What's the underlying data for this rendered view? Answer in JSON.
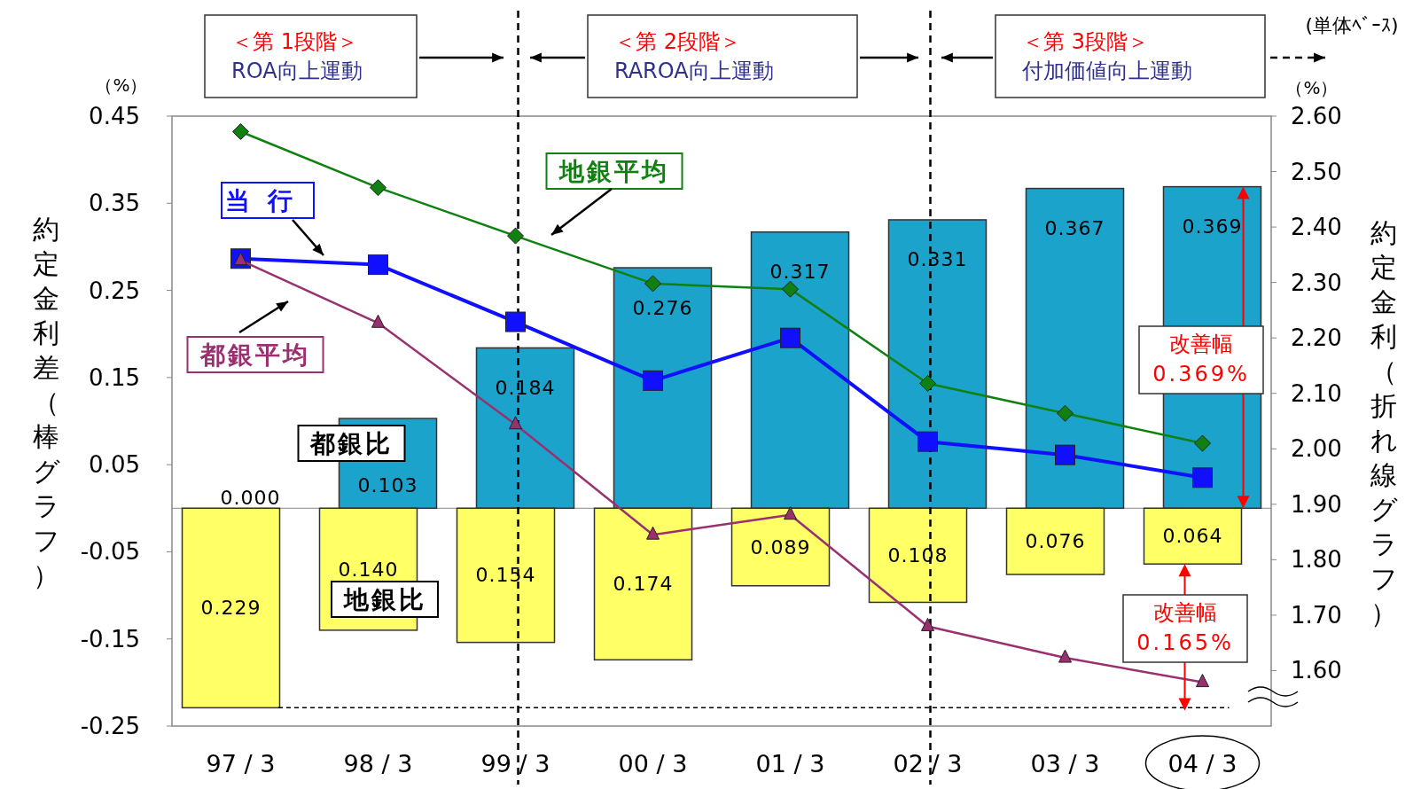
{
  "chart_data": {
    "type": "bar",
    "ylabel": "約定金利差（棒グラフ）",
    "y2label": "約定金利（折れ線グラフ）",
    "categories": [
      "97 / 3",
      "98 / 3",
      "99 / 3",
      "00 / 3",
      "01 / 3",
      "02 / 3",
      "03 / 3",
      "04 / 3"
    ],
    "ylim": [
      -0.25,
      0.45
    ],
    "yticks": [
      -0.25,
      -0.15,
      -0.05,
      0.05,
      0.15,
      0.25,
      0.35,
      0.45
    ],
    "y2lim": [
      1.5,
      2.6
    ],
    "y2ticks": [
      {
        "value": 1.6,
        "label": "1.60"
      },
      {
        "value": 1.7,
        "label": "1.70"
      },
      {
        "value": 1.8,
        "label": "1.80"
      },
      {
        "value": 1.9,
        "label": "1.90"
      },
      {
        "value": 2.0,
        "label": "2.00"
      },
      {
        "value": 2.1,
        "label": "2.10"
      },
      {
        "value": 2.2,
        "label": "2.20"
      },
      {
        "value": 2.3,
        "label": "2.30"
      },
      {
        "value": 2.4,
        "label": "2.40"
      },
      {
        "value": 2.5,
        "label": "2.50"
      },
      {
        "value": 2.6,
        "label": "2.60"
      }
    ],
    "series": [
      {
        "name": "都銀比",
        "type": "bar",
        "color": "#1ba3cc",
        "values": [
          0.0,
          0.103,
          0.184,
          0.276,
          0.317,
          0.331,
          0.367,
          0.369
        ],
        "value_labels": [
          "0.000",
          "0.103",
          "0.184",
          "0.276",
          "0.317",
          "0.331",
          "0.367",
          "0.369"
        ]
      },
      {
        "name": "地銀比",
        "type": "bar",
        "color": "#ffff66",
        "values": [
          0.229,
          0.14,
          0.154,
          0.174,
          0.089,
          0.108,
          0.076,
          0.064
        ],
        "base": [
          -0.229,
          -0.14,
          -0.154,
          -0.174,
          -0.089,
          -0.108,
          -0.076,
          -0.064
        ],
        "value_labels": [
          "0.229",
          "0.140",
          "0.154",
          "0.174",
          "0.089",
          "0.108",
          "0.076",
          "0.064"
        ]
      },
      {
        "name": "地銀平均",
        "type": "line",
        "axis": "y2",
        "marker": "diamond",
        "color": "#108010",
        "values": [
          2.572,
          2.471,
          2.384,
          2.298,
          2.288,
          2.118,
          2.064,
          2.01
        ]
      },
      {
        "name": "当行",
        "type": "line",
        "axis": "y2",
        "marker": "square",
        "color": "#1010ff",
        "values": [
          2.343,
          2.332,
          2.229,
          2.123,
          2.2,
          2.013,
          1.989,
          1.948
        ]
      },
      {
        "name": "都銀平均",
        "type": "line",
        "axis": "y2",
        "marker": "triangle",
        "color": "#993070",
        "values": [
          2.34,
          2.227,
          2.044,
          1.845,
          1.881,
          1.68,
          1.623,
          1.579
        ]
      }
    ],
    "ref_lines": [
      {
        "axis": "x",
        "value": "99 / 3",
        "line_style": "dashed",
        "color": "#000000"
      },
      {
        "axis": "x",
        "value": "02 / 3",
        "line_style": "dashed",
        "color": "#000000"
      },
      {
        "axis": "y",
        "value": -0.229,
        "line_style": "dashed",
        "color": "#000000"
      }
    ],
    "annotations": [
      "＜第 1段階＞",
      "ROA向上運動",
      "＜第 2段階＞",
      "RAROA向上運動",
      "＜第 3段階＞",
      "付加価値向上運動",
      "(単体ﾍﾞｰｽ)",
      "（%）",
      "（%）",
      "改善幅 0.369%",
      "改善幅 0.165%"
    ],
    "legend": false,
    "grid": false
  }
}
